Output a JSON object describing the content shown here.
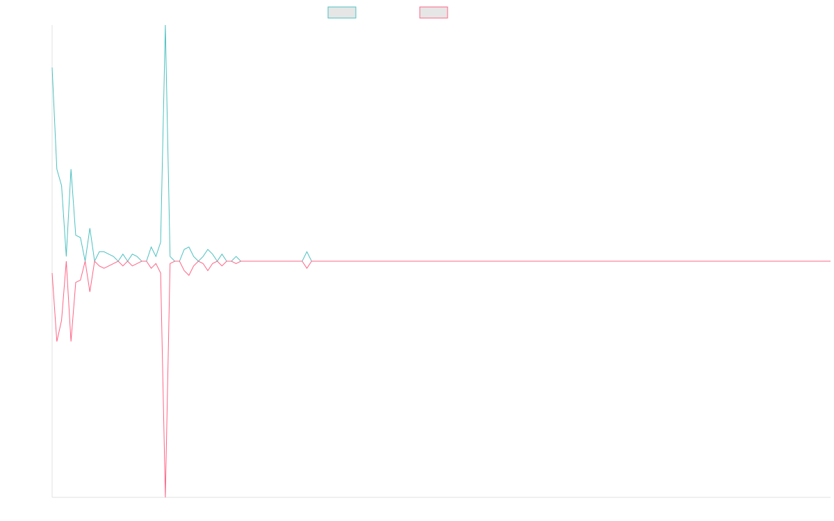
{
  "chart_data": {
    "type": "line",
    "ylim": [
      -1,
      1
    ],
    "series": [
      {
        "color": "#4bc0c0",
        "values": [
          0.82,
          0.39,
          0.32,
          0.02,
          0.39,
          0.11,
          0.1,
          0,
          0.14,
          0,
          0.04,
          0.04,
          0.03,
          0.02,
          0,
          0.03,
          0,
          0.03,
          0.02,
          0,
          0,
          0.06,
          0.02,
          0.08,
          1,
          0.02,
          0,
          0,
          0.05,
          0.06,
          0.02,
          0,
          0.02,
          0.05,
          0.03,
          0,
          0.03,
          0,
          0,
          0.02,
          0,
          0,
          0,
          0,
          0,
          0,
          0,
          0,
          0,
          0,
          0,
          0,
          0,
          0,
          0.04,
          0,
          0,
          0,
          0,
          0,
          0,
          0,
          0,
          0,
          0,
          0,
          0,
          0,
          0,
          0,
          0,
          0,
          0,
          0,
          0,
          0,
          0,
          0,
          0,
          0,
          0,
          0,
          0,
          0,
          0,
          0,
          0,
          0,
          0,
          0,
          0,
          0,
          0,
          0,
          0,
          0,
          0,
          0,
          0,
          0,
          0,
          0,
          0,
          0,
          0,
          0,
          0,
          0,
          0,
          0,
          0,
          0,
          0,
          0,
          0,
          0,
          0,
          0,
          0,
          0,
          0,
          0,
          0,
          0,
          0,
          0,
          0,
          0,
          0,
          0,
          0,
          0,
          0,
          0,
          0,
          0,
          0,
          0,
          0,
          0,
          0,
          0,
          0,
          0,
          0,
          0,
          0,
          0,
          0,
          0,
          0,
          0,
          0,
          0,
          0,
          0,
          0,
          0,
          0,
          0,
          0,
          0,
          0,
          0,
          0,
          0
        ]
      },
      {
        "color": "#ff6384",
        "values": [
          -0.05,
          -0.34,
          -0.25,
          0,
          -0.34,
          -0.09,
          -0.08,
          0,
          -0.13,
          0,
          -0.02,
          -0.03,
          -0.02,
          -0.01,
          0,
          -0.02,
          0,
          -0.02,
          -0.01,
          0,
          0,
          -0.03,
          -0.01,
          -0.05,
          -1,
          -0.01,
          0,
          0,
          -0.04,
          -0.06,
          -0.02,
          0,
          -0.01,
          -0.04,
          -0.01,
          0,
          -0.02,
          0,
          0,
          -0.01,
          0,
          0,
          0,
          0,
          0,
          0,
          0,
          0,
          0,
          0,
          0,
          0,
          0,
          0,
          -0.03,
          0,
          0,
          0,
          0,
          0,
          0,
          0,
          0,
          0,
          0,
          0,
          0,
          0,
          0,
          0,
          0,
          0,
          0,
          0,
          0,
          0,
          0,
          0,
          0,
          0,
          0,
          0,
          0,
          0,
          0,
          0,
          0,
          0,
          0,
          0,
          0,
          0,
          0,
          0,
          0,
          0,
          0,
          0,
          0,
          0,
          0,
          0,
          0,
          0,
          0,
          0,
          0,
          0,
          0,
          0,
          0,
          0,
          0,
          0,
          0,
          0,
          0,
          0,
          0,
          0,
          0,
          0,
          0,
          0,
          0,
          0,
          0,
          0,
          0,
          0,
          0,
          0,
          0,
          0,
          0,
          0,
          0,
          0,
          0,
          0,
          0,
          0,
          0,
          0,
          0,
          0,
          0,
          0,
          0,
          0,
          0,
          0,
          0,
          0,
          0,
          0,
          0,
          0,
          0,
          0,
          0,
          0,
          0,
          0,
          0,
          0
        ]
      }
    ]
  }
}
